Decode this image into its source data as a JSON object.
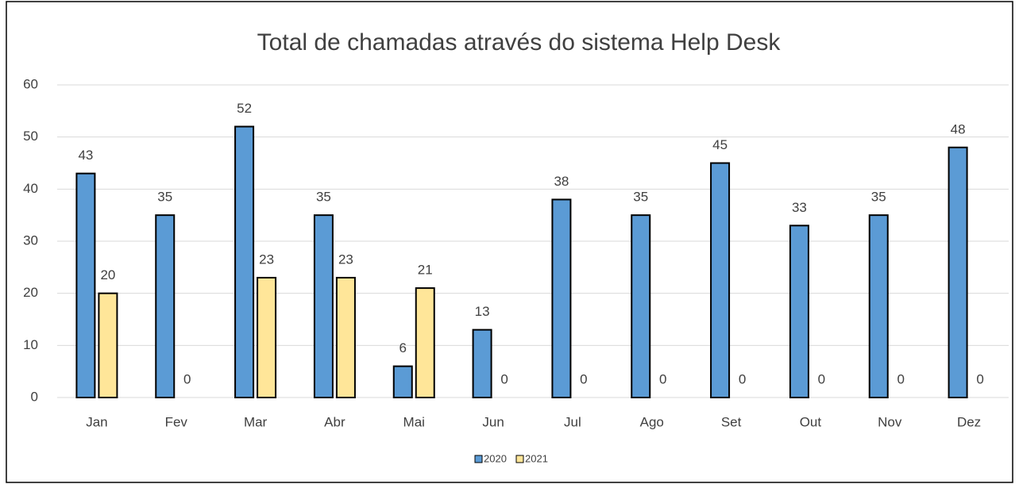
{
  "chart_data": {
    "type": "bar",
    "title": "Total de chamadas através do sistema Help Desk",
    "categories": [
      "Jan",
      "Fev",
      "Mar",
      "Abr",
      "Mai",
      "Jun",
      "Jul",
      "Ago",
      "Set",
      "Out",
      "Nov",
      "Dez"
    ],
    "series": [
      {
        "name": "2020",
        "color": "#5b9bd5",
        "values": [
          43,
          35,
          52,
          35,
          6,
          13,
          38,
          35,
          45,
          33,
          35,
          48
        ]
      },
      {
        "name": "2021",
        "color": "#ffe699",
        "values": [
          20,
          0,
          23,
          23,
          21,
          0,
          0,
          0,
          0,
          0,
          0,
          0
        ]
      }
    ],
    "ylim": [
      0,
      60
    ],
    "yticks": [
      0,
      10,
      20,
      30,
      40,
      50,
      60
    ],
    "grid": true,
    "legend": "bottom"
  }
}
